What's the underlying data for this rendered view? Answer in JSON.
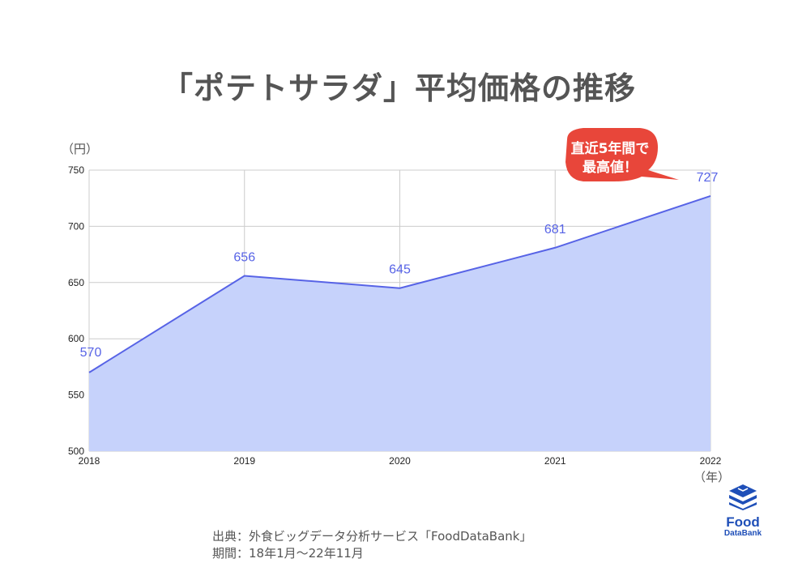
{
  "title": "「ポテトサラダ」平均価格の推移",
  "callout": {
    "line1": "直近5年間で",
    "line2": "最高値！",
    "color": "#e8463a"
  },
  "source": {
    "line1": "出典：外食ビッグデータ分析サービス「FoodDataBank」",
    "line2": "期間：18年1月〜22年11月"
  },
  "logo": {
    "line1": "Food",
    "line2": "DataBank",
    "color": "#1f4fb8",
    "icon": "stacked-dish-icon"
  },
  "chart_data": {
    "type": "area",
    "categories": [
      "2018",
      "2019",
      "2020",
      "2021",
      "2022"
    ],
    "values": [
      570,
      656,
      645,
      681,
      727
    ],
    "data_labels": [
      "570",
      "656",
      "645",
      "681",
      "727"
    ],
    "ylim": [
      500,
      750
    ],
    "y_ticks": [
      "500",
      "550",
      "600",
      "650",
      "700",
      "750"
    ],
    "ylabel": "（円）",
    "xlabel": "（年）",
    "grid": true,
    "line_color": "#5763e6",
    "fill_color": "#c6d2fb"
  }
}
